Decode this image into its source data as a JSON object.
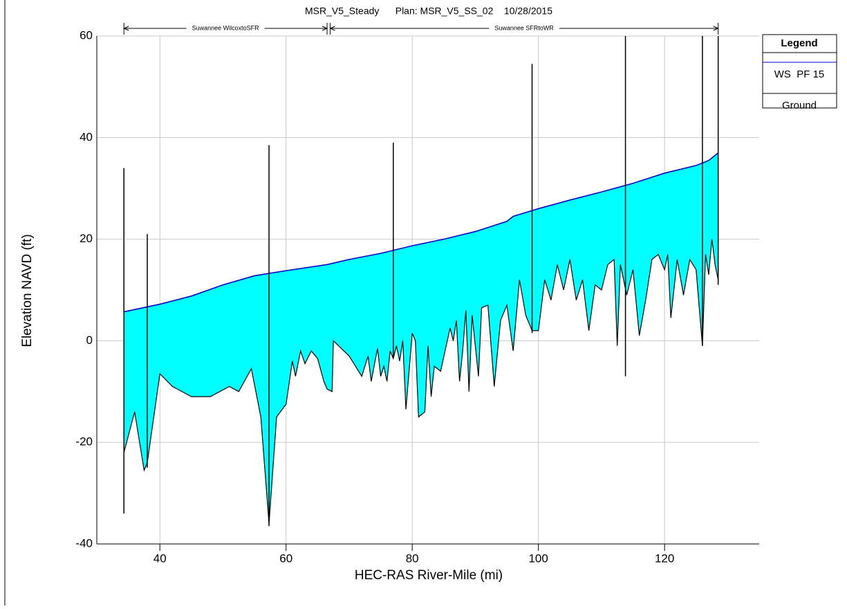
{
  "chart_data": {
    "type": "line",
    "title": "MSR_V5_Steady      Plan: MSR_V5_SS_02    10/28/2015",
    "xlabel": "HEC-RAS River-Mile (mi)",
    "ylabel": "Elevation NAVD (ft)",
    "xlim": [
      30,
      135
    ],
    "ylim": [
      -40,
      60
    ],
    "xticks": [
      40,
      60,
      80,
      100,
      120
    ],
    "yticks": [
      -40,
      -20,
      0,
      20,
      40,
      60
    ],
    "grid": true,
    "fill_color": "#00ffff",
    "legend_title": "Legend",
    "legend": "right",
    "reaches": [
      {
        "name": "Suwannee WilcoxtoSFR",
        "x": [
          34.3,
          66.5
        ]
      },
      {
        "name": "Suwannee SFRtoWR",
        "x": [
          67,
          128.5
        ]
      }
    ],
    "series": [
      {
        "name": "WS  PF 15",
        "color": "#0000cc",
        "x": [
          34.3,
          40,
          45,
          50,
          55,
          60,
          66.5,
          70,
          75,
          80,
          85,
          90,
          95,
          96,
          100,
          105,
          110,
          115,
          120,
          125,
          127,
          128.5
        ],
        "values": [
          5.7,
          7.2,
          8.8,
          11,
          12.8,
          13.8,
          15,
          16,
          17.2,
          18.7,
          20,
          21.5,
          23.5,
          24.5,
          26,
          27.7,
          29.3,
          31,
          33,
          34.5,
          35.5,
          37
        ]
      },
      {
        "name": "Ground",
        "color": "#000000",
        "x": [
          34.3,
          36,
          37.5,
          38,
          40,
          42,
          45,
          48,
          51,
          52.5,
          54.5,
          56,
          57.3,
          58.5,
          60,
          61,
          61.5,
          62.3,
          63,
          64,
          65,
          66,
          66.5,
          67.3,
          67.5,
          70,
          72,
          73,
          73.5,
          74.5,
          75,
          75.5,
          76,
          76.5,
          77,
          77.5,
          78,
          78.5,
          79,
          80,
          80.5,
          81,
          82,
          82.5,
          83,
          83.5,
          84.5,
          86,
          86.5,
          87,
          87.5,
          88,
          88.5,
          89,
          89.5,
          90.5,
          91,
          92,
          93,
          94,
          95,
          96,
          97,
          98,
          99,
          100,
          101,
          102,
          103,
          104,
          105,
          106,
          107,
          108,
          109,
          110,
          111,
          112,
          112.5,
          113,
          114,
          115,
          116,
          117,
          118,
          119,
          120,
          120.5,
          121,
          122,
          123,
          124,
          125,
          126,
          126.5,
          127,
          127.5,
          128,
          128.5
        ],
        "values": [
          -22,
          -14,
          -25.5,
          -24,
          -6.5,
          -9,
          -11,
          -11,
          -9,
          -10,
          -5.5,
          -15,
          -36,
          -15,
          -12.5,
          -4,
          -7,
          -2,
          -4.5,
          -2,
          -3.5,
          -8,
          -9.5,
          -10,
          0,
          -3,
          -7,
          -3,
          -8,
          -1.5,
          -7,
          -5,
          -8,
          -2,
          -3.5,
          -1,
          -4,
          0,
          -13.5,
          1.5,
          0,
          -15,
          -14,
          -1,
          -11,
          -5,
          -6,
          2.5,
          0,
          4,
          -8,
          -2,
          6,
          -10,
          5,
          -7,
          6.5,
          7,
          -9,
          4,
          7,
          -2,
          12,
          5,
          2,
          2,
          12,
          8,
          15,
          10,
          16,
          8,
          12,
          2,
          11,
          10,
          15,
          16,
          -1,
          15,
          9,
          14,
          1,
          8,
          16,
          17,
          14,
          17,
          4.5,
          16,
          9,
          16,
          14,
          -1,
          17,
          13,
          20,
          15,
          12
        ]
      }
    ],
    "structures": [
      {
        "x": 34.3,
        "low": -34,
        "high": 34
      },
      {
        "x": 38,
        "low": -25,
        "high": 21
      },
      {
        "x": 57.3,
        "low": -36.5,
        "high": 38.5
      },
      {
        "x": 77,
        "low": -3.5,
        "high": 39
      },
      {
        "x": 99,
        "low": 1.5,
        "high": 54.5
      },
      {
        "x": 113.8,
        "low": -7,
        "high": 60
      },
      {
        "x": 126,
        "low": -1,
        "high": 60
      },
      {
        "x": 128.5,
        "low": 11,
        "high": 60
      }
    ]
  }
}
